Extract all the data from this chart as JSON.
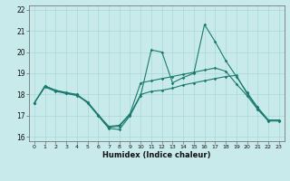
{
  "title": "",
  "xlabel": "Humidex (Indice chaleur)",
  "bg_color": "#c8eaea",
  "line_color": "#1a7a6e",
  "grid_color": "#a8d8d8",
  "xlim": [
    -0.5,
    23.5
  ],
  "ylim": [
    15.8,
    22.2
  ],
  "yticks": [
    16,
    17,
    18,
    19,
    20,
    21,
    22
  ],
  "xticks": [
    0,
    1,
    2,
    3,
    4,
    5,
    6,
    7,
    8,
    9,
    10,
    11,
    12,
    13,
    14,
    15,
    16,
    17,
    18,
    19,
    20,
    21,
    22,
    23
  ],
  "line1_y": [
    17.6,
    18.4,
    18.2,
    18.1,
    18.0,
    17.6,
    17.0,
    16.4,
    16.35,
    17.0,
    17.95,
    20.1,
    20.0,
    18.55,
    18.8,
    19.0,
    21.3,
    20.5,
    19.6,
    18.85,
    18.1,
    17.4,
    16.8,
    16.8
  ],
  "line2_y": [
    17.6,
    18.4,
    18.2,
    18.05,
    18.0,
    17.65,
    17.05,
    16.45,
    16.5,
    17.05,
    18.0,
    18.15,
    18.2,
    18.3,
    18.45,
    18.55,
    18.65,
    18.75,
    18.85,
    18.9,
    18.05,
    17.35,
    16.8,
    16.8
  ],
  "line3_y": [
    17.6,
    18.35,
    18.15,
    18.05,
    17.95,
    17.65,
    17.05,
    16.5,
    16.55,
    17.1,
    18.55,
    18.65,
    18.75,
    18.85,
    18.95,
    19.05,
    19.15,
    19.25,
    19.1,
    18.5,
    17.95,
    17.3,
    16.75,
    16.75
  ]
}
